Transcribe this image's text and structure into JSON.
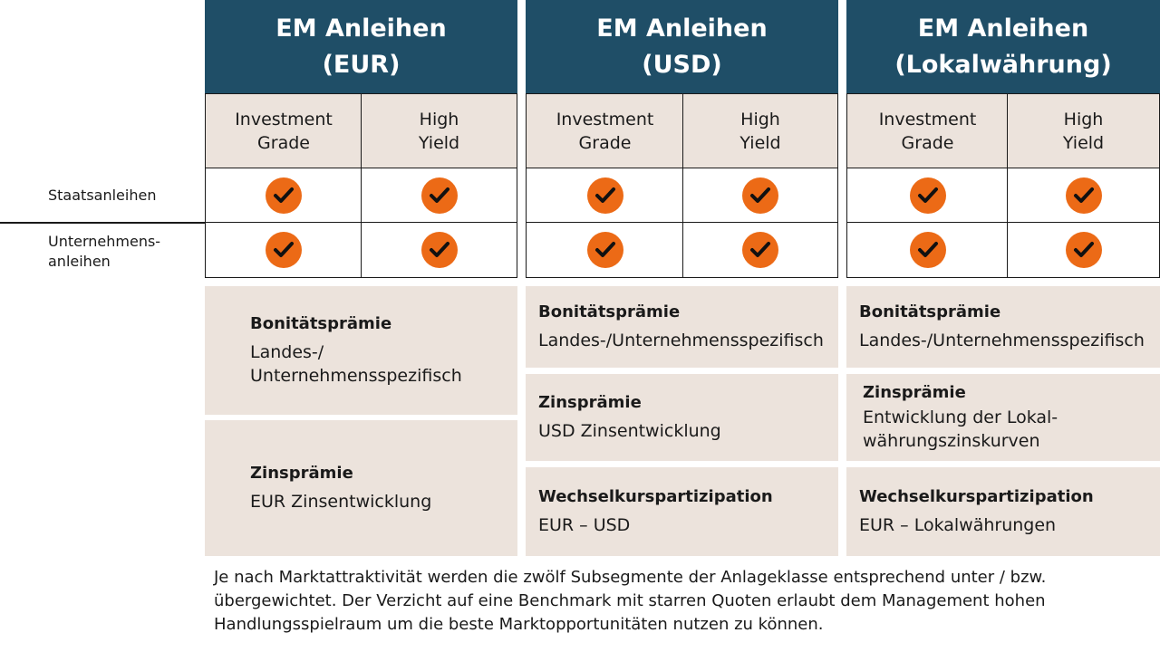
{
  "columns": [
    {
      "title_line1": "EM Anleihen",
      "title_line2": "(EUR)"
    },
    {
      "title_line1": "EM Anleihen",
      "title_line2": "(USD)"
    },
    {
      "title_line1": "EM Anleihen",
      "title_line2": "(Lokalwährung)"
    }
  ],
  "subheaders": {
    "investment_grade": [
      "Investment",
      "Grade"
    ],
    "high_yield": [
      "High",
      "Yield"
    ]
  },
  "rows": {
    "staatsanleihen": "Staatsanleihen",
    "unternehmensanleihen_line1": "Unternehmens-",
    "unternehmensanleihen_line2": "anleihen"
  },
  "check_icon": "checkmark-icon",
  "colors": {
    "header": "#1f4e67",
    "check": "#ec6a16",
    "panel": "#ece3dc"
  },
  "eur": {
    "bonitaet_title": "Bonitätsprämie",
    "bonitaet_line1": "Landes-/",
    "bonitaet_line2": "Unternehmensspezifisch",
    "zins_title": "Zinsprämie",
    "zins_text": "EUR Zinsentwicklung"
  },
  "usd": {
    "bonitaet_title": "Bonitätsprämie",
    "bonitaet_text": "Landes-/Unternehmensspezifisch",
    "zins_title": "Zinsprämie",
    "zins_text": "USD Zinsentwicklung",
    "wechsel_title": "Wechselkurspartizipation",
    "wechsel_text": "EUR – USD"
  },
  "lokal": {
    "bonitaet_title": "Bonitätsprämie",
    "bonitaet_text": "Landes-/Unternehmensspezifisch",
    "zins_title": "Zinsprämie",
    "zins_line1": "Entwicklung der Lokal-",
    "zins_line2": "währungszinskurven",
    "wechsel_title": "Wechselkurspartizipation",
    "wechsel_text": "EUR – Lokalwährungen"
  },
  "footnote": {
    "line1": "Je nach Marktattraktivität werden die zwölf Subsegmente der Anlageklasse entsprechend unter / bzw.",
    "line2": "übergewichtet. Der Verzicht auf eine Benchmark mit starren Quoten erlaubt dem Management hohen",
    "line3": "Handlungsspielraum um die beste Marktopportunitäten nutzen zu können."
  }
}
